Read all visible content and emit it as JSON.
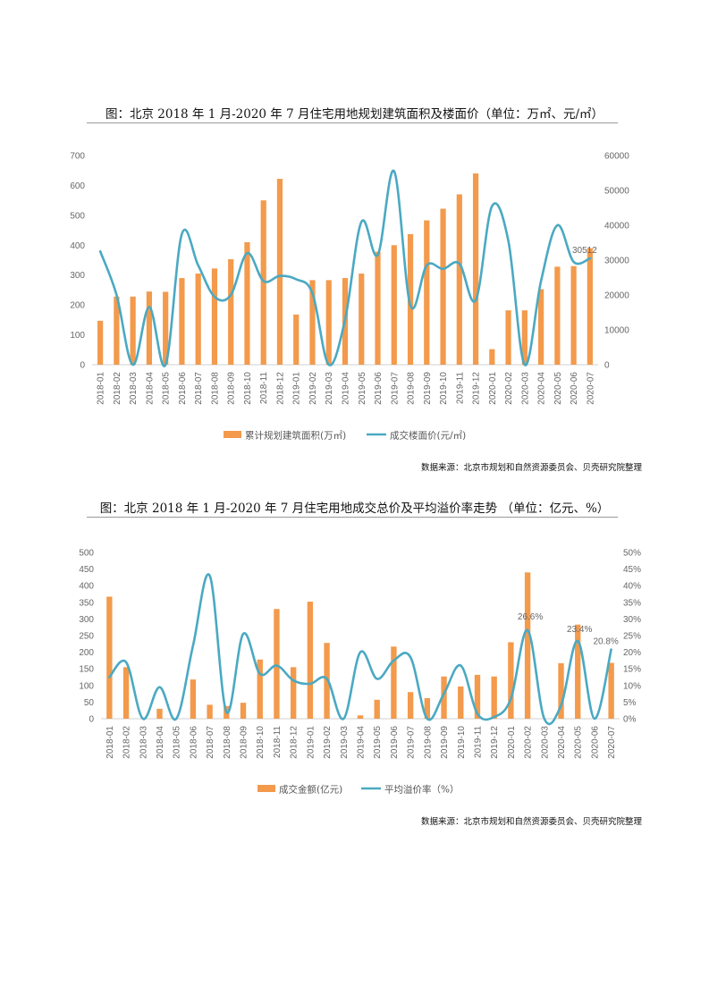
{
  "colors": {
    "bar": "#F39A4C",
    "line": "#4AA9C2",
    "axis": "#D0D0D0"
  },
  "charts": {
    "c1": {
      "title": "图：北京 2018 年 1 月-2020 年 7 月住宅用地规划建筑面积及楼面价（单位：万㎡、元/㎡）",
      "source": "数据来源：北京市规划和自然资源委员会、贝壳研究院整理",
      "legend_bar": "累计规划建筑面积(万㎡)",
      "legend_line": "成交楼面价(元/㎡)",
      "point_label": "30512"
    },
    "c2": {
      "title": "图：北京 2018 年 1 月-2020 年 7 月住宅用地成交总价及平均溢价率走势 （单位：亿元、%）",
      "source": "数据来源：北京市规划和自然资源委员会、贝壳研究院整理",
      "legend_bar": "成交金额(亿元)",
      "legend_line": "平均溢价率（%）",
      "point_labels": [
        "26.6%",
        "23.4%",
        "20.8%"
      ]
    }
  },
  "chart_data": [
    {
      "type": "bar",
      "categories": [
        "2018-01",
        "2018-02",
        "2018-03",
        "2018-04",
        "2018-05",
        "2018-06",
        "2018-07",
        "2018-08",
        "2018-09",
        "2018-10",
        "2018-11",
        "2018-12",
        "2019-01",
        "2019-02",
        "2019-03",
        "2019-04",
        "2019-05",
        "2019-06",
        "2019-07",
        "2019-08",
        "2019-09",
        "2019-10",
        "2019-11",
        "2019-12",
        "2020-01",
        "2020-02",
        "2020-03",
        "2020-04",
        "2020-05",
        "2020-06",
        "2020-07"
      ],
      "series": [
        {
          "name": "累计规划建筑面积(万㎡)",
          "type": "bar",
          "axis": "left",
          "values": [
            147,
            228,
            228,
            245,
            244,
            290,
            305,
            322,
            353,
            410,
            550,
            622,
            168,
            283,
            283,
            290,
            305,
            378,
            400,
            437,
            483,
            522,
            570,
            640,
            52,
            182,
            182,
            253,
            328,
            330,
            390
          ]
        },
        {
          "name": "成交楼面价(元/㎡)",
          "type": "line",
          "axis": "right",
          "values": [
            32500,
            20000,
            0,
            16500,
            0,
            37500,
            28500,
            19500,
            20000,
            32000,
            24000,
            25500,
            24500,
            20500,
            0,
            13000,
            41000,
            31500,
            55500,
            17000,
            28500,
            27500,
            29000,
            18500,
            45500,
            35500,
            0,
            24000,
            40000,
            29500,
            30512
          ]
        }
      ],
      "ylim_left": [
        0,
        700
      ],
      "ylim_right": [
        0,
        60000
      ],
      "yticks_left": [
        "0",
        "100",
        "200",
        "300",
        "400",
        "500",
        "600",
        "700"
      ],
      "yticks_right": [
        "0",
        "10000",
        "20000",
        "30000",
        "40000",
        "50000",
        "60000"
      ],
      "legend": "bottom"
    },
    {
      "type": "bar",
      "categories": [
        "2018-01",
        "2018-02",
        "2018-03",
        "2018-04",
        "2018-05",
        "2018-06",
        "2018-07",
        "2018-08",
        "2018-09",
        "2018-10",
        "2018-11",
        "2018-12",
        "2019-01",
        "2019-02",
        "2019-03",
        "2019-04",
        "2019-05",
        "2019-06",
        "2019-07",
        "2019-08",
        "2019-09",
        "2019-10",
        "2019-11",
        "2019-12",
        "2020-01",
        "2020-02",
        "2020-03",
        "2020-04",
        "2020-05",
        "2020-06",
        "2020-07"
      ],
      "series": [
        {
          "name": "成交金额(亿元)",
          "type": "bar",
          "axis": "left",
          "values": [
            367,
            155,
            0,
            30,
            0,
            118,
            42,
            38,
            48,
            178,
            330,
            155,
            352,
            228,
            0,
            10,
            57,
            217,
            80,
            62,
            127,
            97,
            132,
            127,
            230,
            440,
            0,
            167,
            283,
            0,
            168
          ]
        },
        {
          "name": "平均溢价率（%）",
          "type": "line",
          "axis": "right",
          "values": [
            12.5,
            17,
            0,
            9.5,
            0,
            22,
            43,
            2,
            25.5,
            13.5,
            16,
            11.5,
            10.5,
            12,
            0,
            20,
            12,
            17.5,
            18.5,
            0,
            7.5,
            16,
            1.5,
            0.5,
            6,
            26.6,
            0,
            4,
            23.4,
            0,
            20.8
          ]
        }
      ],
      "ylim_left": [
        0,
        500
      ],
      "ylim_right": [
        0,
        50
      ],
      "yticks_left": [
        "0",
        "50",
        "100",
        "150",
        "200",
        "250",
        "300",
        "350",
        "400",
        "450",
        "500"
      ],
      "yticks_right": [
        "0%",
        "5%",
        "10%",
        "15%",
        "20%",
        "25%",
        "30%",
        "35%",
        "40%",
        "45%",
        "50%"
      ],
      "legend": "bottom"
    }
  ]
}
